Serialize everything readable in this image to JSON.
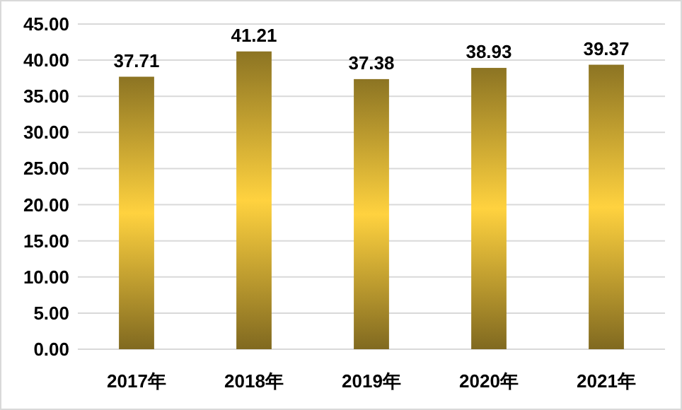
{
  "chart_data": {
    "type": "bar",
    "categories": [
      "2017年",
      "2018年",
      "2019年",
      "2020年",
      "2021年"
    ],
    "values": [
      37.71,
      41.21,
      37.38,
      38.93,
      39.37
    ],
    "color": "#ffd23f",
    "ylim": [
      0,
      45
    ],
    "yticks": [
      {
        "value": 0,
        "label": "0.00"
      },
      {
        "value": 5,
        "label": "5.00"
      },
      {
        "value": 10,
        "label": "10.00"
      },
      {
        "value": 15,
        "label": "15.00"
      },
      {
        "value": 20,
        "label": "20.00"
      },
      {
        "value": 25,
        "label": "25.00"
      },
      {
        "value": 30,
        "label": "30.00"
      },
      {
        "value": 35,
        "label": "35.00"
      },
      {
        "value": 40,
        "label": "40.00"
      },
      {
        "value": 45,
        "label": "45.00"
      }
    ],
    "grid": "y",
    "data_labels": true
  }
}
